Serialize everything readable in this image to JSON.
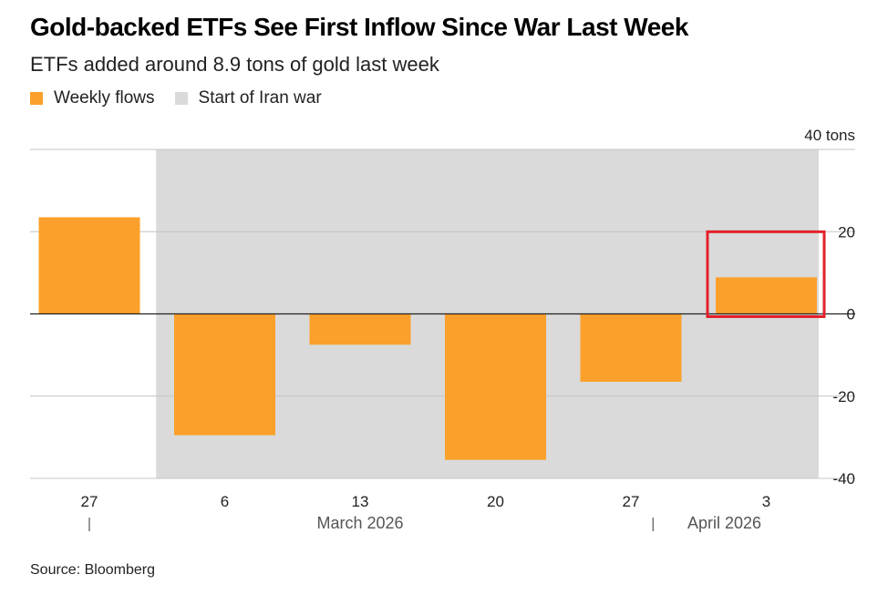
{
  "header": {
    "title": "Gold-backed ETFs See First Inflow Since War Last Week",
    "subtitle": "ETFs added around 8.9 tons of gold last week"
  },
  "legend": {
    "weekly_flows": "Weekly flows",
    "iran_war": "Start of Iran war"
  },
  "footer": {
    "source": "Source: Bloomberg"
  },
  "colors": {
    "bar": "#FBA02A",
    "shade": "#DADADA",
    "highlight": "#E3202A"
  },
  "chart_data": {
    "type": "bar",
    "title": "Gold-backed ETFs See First Inflow Since War Last Week",
    "subtitle": "ETFs added around 8.9 tons of gold last week",
    "categories": [
      "27",
      "6",
      "13",
      "20",
      "27",
      "3"
    ],
    "series": [
      {
        "name": "Weekly flows",
        "values": [
          23.5,
          -29.5,
          -7.5,
          -35.5,
          -16.5,
          8.9
        ]
      }
    ],
    "shaded_region": {
      "name": "Start of Iran war",
      "from_category": 1,
      "to_category": 5
    },
    "highlight_category": 5,
    "ylim": [
      -40,
      40
    ],
    "yticks": [
      {
        "value": 40,
        "label": "40 tons"
      },
      {
        "value": 20,
        "label": "20"
      },
      {
        "value": 0,
        "label": "0"
      },
      {
        "value": -20,
        "label": "-20"
      },
      {
        "value": -40,
        "label": "-40"
      }
    ],
    "month_labels": [
      {
        "label": "March 2026",
        "category": 2
      },
      {
        "label": "April 2026",
        "category": 5
      }
    ],
    "month_separators_before": [
      1,
      5
    ],
    "xlabel": "",
    "ylabel": "",
    "grid": true,
    "legend_position": "top-left"
  }
}
